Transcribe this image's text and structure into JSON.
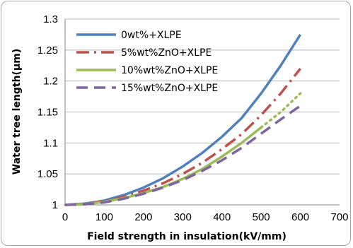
{
  "chart_data": {
    "type": "line",
    "title": "",
    "xlabel": "Field strength in insulation(kV/mm)",
    "ylabel": "Water tree length(μm)",
    "xlim": [
      0,
      700
    ],
    "ylim": [
      1,
      1.3
    ],
    "xticks": [
      "0",
      "100",
      "200",
      "300",
      "400",
      "500",
      "600",
      "700"
    ],
    "yticks": [
      "1",
      "1.05",
      "1.1",
      "1.15",
      "1.2",
      "1.25",
      "1.3"
    ],
    "grid": "horizontal",
    "legend_position": "top-left",
    "series": [
      {
        "name": "0wt%+XLPE",
        "color": "#4f81bd",
        "dash": "solid",
        "x": [
          0,
          50,
          100,
          150,
          200,
          250,
          300,
          350,
          400,
          450,
          500,
          550,
          600
        ],
        "y": [
          1.0,
          1.002,
          1.007,
          1.016,
          1.028,
          1.043,
          1.062,
          1.084,
          1.11,
          1.14,
          1.18,
          1.225,
          1.275
        ]
      },
      {
        "name": "5%wt%ZnO+XLPE",
        "color": "#c0504d",
        "dash": "dashdot",
        "x": [
          0,
          50,
          100,
          150,
          200,
          250,
          300,
          350,
          400,
          450,
          500,
          550,
          600
        ],
        "y": [
          1.0,
          1.002,
          1.006,
          1.013,
          1.023,
          1.035,
          1.05,
          1.068,
          1.09,
          1.114,
          1.145,
          1.18,
          1.22
        ]
      },
      {
        "name": "10%wt%ZnO+XLPE",
        "color": "#9bbb59",
        "dash": "solid-dotted",
        "x": [
          0,
          50,
          100,
          150,
          200,
          250,
          300,
          350,
          400,
          450,
          500,
          550,
          600
        ],
        "y": [
          1.0,
          1.001,
          1.005,
          1.011,
          1.019,
          1.029,
          1.042,
          1.058,
          1.078,
          1.1,
          1.125,
          1.15,
          1.18
        ]
      },
      {
        "name": "15%wt%ZnO+XLPE",
        "color": "#8064a2",
        "dash": "dashed",
        "x": [
          0,
          50,
          100,
          150,
          200,
          250,
          300,
          350,
          400,
          450,
          500,
          550,
          600
        ],
        "y": [
          1.0,
          1.001,
          1.004,
          1.01,
          1.018,
          1.028,
          1.04,
          1.055,
          1.072,
          1.092,
          1.115,
          1.138,
          1.16
        ]
      }
    ]
  }
}
